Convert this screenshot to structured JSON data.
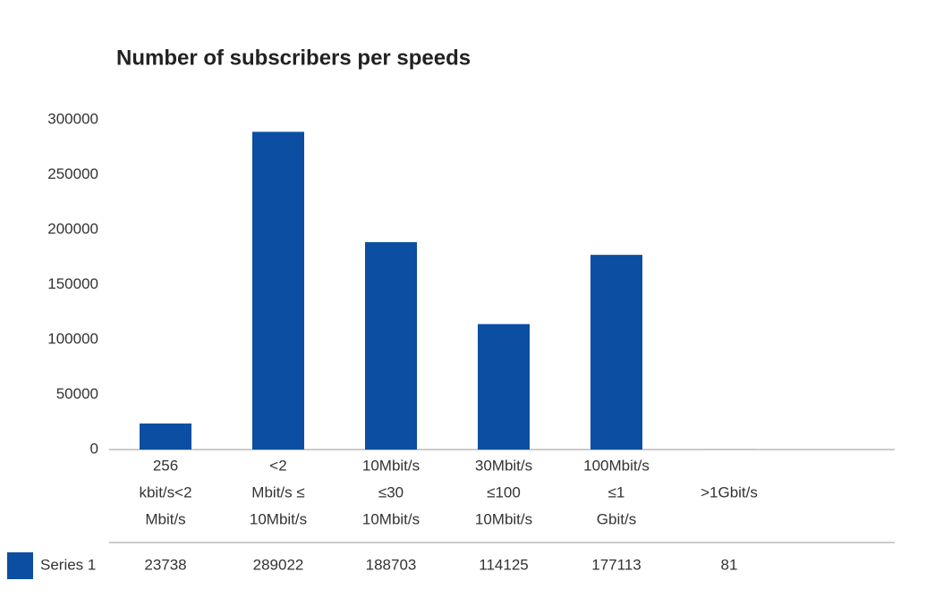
{
  "chart_data": {
    "type": "bar",
    "title": "Number of subscribers per speeds",
    "categories": [
      [
        "256",
        "kbit/s<2",
        "Mbit/s"
      ],
      [
        "<2",
        "Mbit/s ≤",
        "10Mbit/s"
      ],
      [
        "10Mbit/s",
        "≤30",
        "10Mbit/s"
      ],
      [
        "30Mbit/s",
        "≤100",
        "10Mbit/s"
      ],
      [
        "100Mbit/s",
        "≤1",
        "Gbit/s"
      ],
      [
        ">1Gbit/s"
      ]
    ],
    "series": [
      {
        "name": "Series 1",
        "color": "#0b4ea2",
        "values": [
          23738,
          289022,
          188703,
          114125,
          177113,
          81
        ]
      }
    ],
    "ylim": [
      0,
      300000
    ],
    "yticks": [
      0,
      50000,
      100000,
      150000,
      200000,
      250000,
      300000
    ],
    "grid": false
  }
}
